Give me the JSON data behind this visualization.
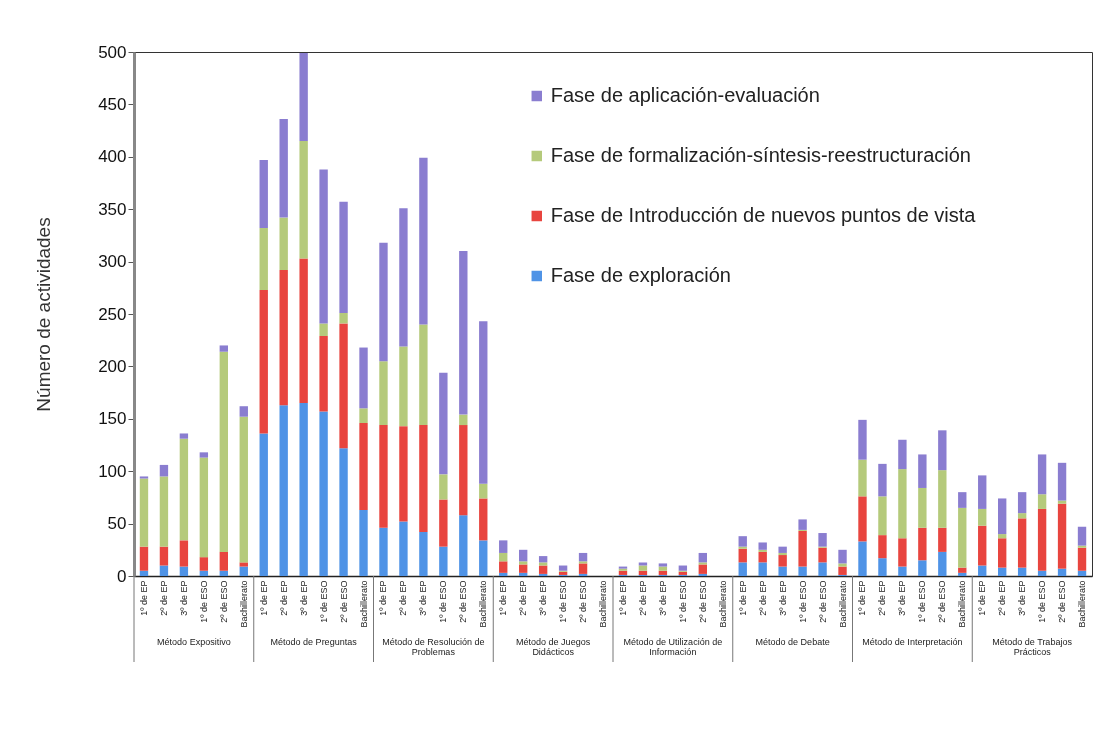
{
  "chart_data": {
    "type": "bar",
    "stacked": true,
    "ylabel": "Número de actividades",
    "legend": "top right",
    "categories": [
      "1º de EP",
      "2º de EP",
      "3º de EP",
      "1º de ESO",
      "2º de ESO",
      "Bachillerato",
      "1º de EP",
      "2º de EP",
      "3º de EP",
      "1º de ESO",
      "2º de ESO",
      "Bachillerato",
      "1º de EP",
      "2º de EP",
      "3º de EP",
      "1º de ESO",
      "2º de ESO",
      "Bachillerato",
      "1º de EP",
      "2º de EP",
      "3º de EP",
      "1º de ESO",
      "2º de ESO",
      "Bachillerato",
      "1º de EP",
      "2º de EP",
      "3º de EP",
      "1º de ESO",
      "2º de ESO",
      "Bachillerato",
      "1º de EP",
      "2º de EP",
      "3º de EP",
      "1º de ESO",
      "2º de ESO",
      "Bachillerato",
      "1º de EP",
      "2º de EP",
      "3º de EP",
      "1º de ESO",
      "2º de ESO",
      "Bachillerato",
      "1º de EP",
      "2º de EP",
      "3º de EP",
      "1º de ESO",
      "2º de ESO",
      "Bachillerato"
    ],
    "annotations": [
      "Método Expositivo",
      "Método de Preguntas",
      "Método de Resolución de Problemas",
      "Método de Juegos Didácticos",
      "Método de Utilización de Información",
      "Método de Debate",
      "Método de Interpretación",
      "Método de Trabajos Prácticos"
    ],
    "series": [
      {
        "name": "Fase de exploración",
        "color": "#4f93e6",
        "values": [
          5,
          10,
          9,
          5,
          5,
          9,
          136,
          163,
          165,
          157,
          122,
          63,
          46,
          52,
          42,
          28,
          58,
          34,
          3,
          3,
          2,
          1,
          2,
          0,
          1,
          1,
          1,
          1,
          2,
          0,
          13,
          13,
          9,
          9,
          13,
          1,
          33,
          17,
          9,
          15,
          23,
          3,
          10,
          8,
          8,
          5,
          7,
          5
        ]
      },
      {
        "name": "Fase de Introducción de nuevos puntos de vista",
        "color": "#e8453f",
        "values": [
          23,
          18,
          25,
          13,
          18,
          4,
          137,
          129,
          138,
          72,
          119,
          83,
          98,
          91,
          102,
          45,
          86,
          40,
          11,
          8,
          8,
          3,
          10,
          0,
          4,
          4,
          4,
          3,
          9,
          0,
          13,
          10,
          11,
          34,
          14,
          8,
          43,
          22,
          27,
          31,
          23,
          5,
          38,
          28,
          47,
          59,
          62,
          22
        ]
      },
      {
        "name": "Fase de formalización-síntesis-reestructuración",
        "color": "#b5ca7b",
        "values": [
          65,
          67,
          97,
          95,
          191,
          139,
          59,
          50,
          112,
          12,
          10,
          14,
          61,
          76,
          96,
          24,
          10,
          14,
          8,
          3,
          3,
          1,
          2,
          0,
          2,
          5,
          4,
          1,
          2,
          0,
          2,
          2,
          2,
          1,
          1,
          3,
          35,
          37,
          66,
          38,
          55,
          57,
          16,
          4,
          5,
          14,
          3,
          2
        ]
      },
      {
        "name": "Fase de aplicación-evaluación",
        "color": "#8a7dd0",
        "values": [
          2,
          11,
          5,
          5,
          6,
          10,
          65,
          94,
          84,
          147,
          106,
          58,
          113,
          132,
          159,
          97,
          156,
          155,
          12,
          11,
          6,
          5,
          8,
          0,
          2,
          3,
          3,
          5,
          9,
          0,
          10,
          7,
          6,
          10,
          13,
          13,
          38,
          31,
          28,
          32,
          38,
          15,
          32,
          34,
          20,
          38,
          36,
          18
        ]
      }
    ],
    "ylim": [
      0,
      500
    ],
    "yticks": [
      0,
      50,
      100,
      150,
      200,
      250,
      300,
      350,
      400,
      450,
      500
    ]
  }
}
